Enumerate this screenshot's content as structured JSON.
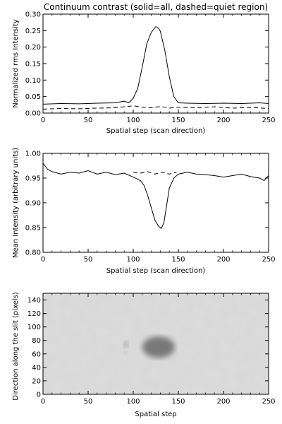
{
  "chart_data": [
    {
      "type": "line",
      "title": "Continuum contrast (solid=all, dashed=quiet region)",
      "xlabel": "Spatial step (scan direction)",
      "ylabel": "Normalized rms Intensity",
      "xlim": [
        0,
        250
      ],
      "ylim": [
        0,
        0.3
      ],
      "xticks": [
        0,
        50,
        100,
        150,
        200,
        250
      ],
      "yticks": [
        0.0,
        0.05,
        0.1,
        0.15,
        0.2,
        0.25,
        0.3
      ],
      "ytick_labels": [
        "0.00",
        "0.05",
        "0.10",
        "0.15",
        "0.20",
        "0.25",
        "0.30"
      ],
      "xtick_labels": [
        "0",
        "50",
        "100",
        "150",
        "200",
        "250"
      ],
      "series": [
        {
          "style": "solid",
          "x": [
            0,
            20,
            40,
            60,
            80,
            90,
            95,
            100,
            105,
            110,
            115,
            120,
            125,
            128,
            130,
            135,
            140,
            145,
            150,
            160,
            180,
            200,
            220,
            240,
            250
          ],
          "y": [
            0.027,
            0.029,
            0.028,
            0.03,
            0.031,
            0.036,
            0.031,
            0.045,
            0.075,
            0.14,
            0.21,
            0.245,
            0.262,
            0.258,
            0.248,
            0.19,
            0.11,
            0.05,
            0.031,
            0.03,
            0.029,
            0.03,
            0.029,
            0.031,
            0.029
          ]
        },
        {
          "style": "dashed",
          "x": [
            0,
            20,
            40,
            60,
            80,
            100,
            110,
            120,
            130,
            140,
            150,
            170,
            190,
            210,
            230,
            250
          ],
          "y": [
            0.012,
            0.014,
            0.013,
            0.015,
            0.016,
            0.022,
            0.018,
            0.016,
            0.02,
            0.015,
            0.018,
            0.016,
            0.019,
            0.015,
            0.017,
            0.014
          ]
        }
      ]
    },
    {
      "type": "line",
      "title": "",
      "xlabel": "Spatial step (scan direction)",
      "ylabel": "Mean Intensity (arbitrary units)",
      "xlim": [
        0,
        250
      ],
      "ylim": [
        0.8,
        1.0
      ],
      "xticks": [
        0,
        50,
        100,
        150,
        200,
        250
      ],
      "yticks": [
        0.8,
        0.85,
        0.9,
        0.95,
        1.0
      ],
      "ytick_labels": [
        "0.80",
        "0.85",
        "0.90",
        "0.95",
        "1.00"
      ],
      "xtick_labels": [
        "0",
        "50",
        "100",
        "150",
        "200",
        "250"
      ],
      "series": [
        {
          "style": "solid",
          "x": [
            0,
            5,
            10,
            20,
            30,
            40,
            50,
            60,
            70,
            80,
            90,
            100,
            108,
            112,
            116,
            120,
            124,
            128,
            131,
            134,
            137,
            140,
            145,
            150,
            160,
            170,
            180,
            190,
            200,
            210,
            220,
            230,
            240,
            245,
            250
          ],
          "y": [
            0.98,
            0.968,
            0.963,
            0.958,
            0.962,
            0.96,
            0.965,
            0.958,
            0.962,
            0.957,
            0.96,
            0.952,
            0.945,
            0.935,
            0.915,
            0.89,
            0.865,
            0.853,
            0.848,
            0.86,
            0.895,
            0.93,
            0.95,
            0.958,
            0.962,
            0.958,
            0.957,
            0.955,
            0.952,
            0.955,
            0.958,
            0.953,
            0.95,
            0.945,
            0.955
          ]
        },
        {
          "style": "dashed",
          "x": [
            100,
            108,
            116,
            124,
            132,
            140,
            148
          ],
          "y": [
            0.962,
            0.96,
            0.963,
            0.958,
            0.962,
            0.958,
            0.962
          ]
        }
      ]
    },
    {
      "type": "heatmap",
      "title": "",
      "xlabel": "Spatial step",
      "ylabel": "Direction along the slit (pixels)",
      "xlim": [
        0,
        250
      ],
      "ylim": [
        0,
        150
      ],
      "xticks": [
        0,
        50,
        100,
        150,
        200,
        250
      ],
      "yticks": [
        0,
        20,
        40,
        60,
        80,
        100,
        120,
        140
      ],
      "xtick_labels": [
        "0",
        "50",
        "100",
        "150",
        "200",
        "250"
      ],
      "ytick_labels": [
        "0",
        "20",
        "40",
        "60",
        "80",
        "100",
        "120",
        "140"
      ],
      "colormap": "inverted grayscale",
      "features": [
        {
          "kind": "umbra",
          "x": 130,
          "y": 70,
          "rx": 8,
          "ry": 6,
          "darkness": 0.95
        },
        {
          "kind": "penumbra",
          "x": 128,
          "y": 70,
          "rx": 18,
          "ry": 16,
          "darkness": 0.45
        },
        {
          "kind": "pore",
          "x": 92,
          "y": 74,
          "rx": 3,
          "ry": 5,
          "darkness": 0.25
        },
        {
          "kind": "pore",
          "x": 91,
          "y": 62,
          "rx": 2,
          "ry": 3,
          "darkness": 0.18
        }
      ]
    }
  ]
}
